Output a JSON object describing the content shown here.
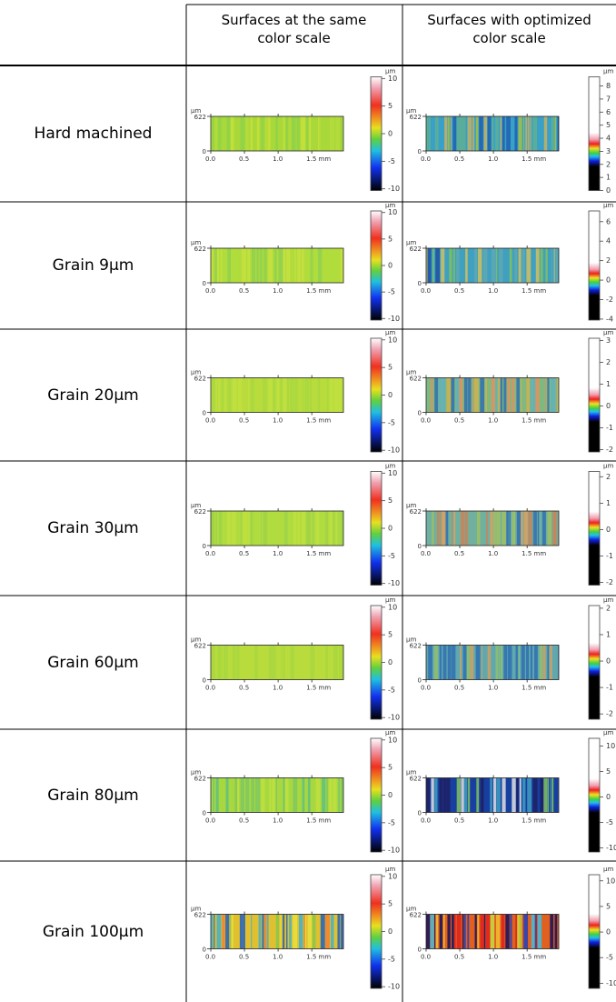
{
  "table": {
    "headers": [
      "Surfaces at the same color scale",
      "Surfaces with optimized color scale"
    ],
    "plot_axes": {
      "unit": "µm",
      "ylim": [
        0,
        622
      ],
      "yticks": [
        622,
        0
      ],
      "xlim": [
        0,
        1.97
      ],
      "xticks": [
        {
          "value": 0,
          "label": "0.0"
        },
        {
          "value": 0.5,
          "label": "0.5"
        },
        {
          "value": 1,
          "label": "1.0"
        },
        {
          "value": 1.5,
          "label": "1.5 mm"
        }
      ]
    },
    "same_scale": {
      "ticks": [
        10,
        5,
        0,
        -5,
        -10
      ],
      "lim": [
        -10.3,
        10.3
      ]
    },
    "rows": [
      {
        "label": "Hard machined",
        "same_colors": [
          "#a8d83a",
          "#c8e03a",
          "#8fd24a",
          "#b5dc3c"
        ],
        "optimized": {
          "ticks": [
            8,
            7,
            6,
            5,
            4,
            3,
            2,
            1,
            0
          ],
          "lim": [
            0,
            8.7
          ],
          "colors": [
            "#3aa0c8",
            "#a8c040",
            "#2060b0",
            "#c8b060",
            "#60b090"
          ]
        }
      },
      {
        "label": "Grain 9µm",
        "same_colors": [
          "#b0dc3c",
          "#90d050",
          "#c8e040"
        ],
        "optimized": {
          "ticks": [
            6,
            4,
            2,
            0,
            -2,
            -4
          ],
          "lim": [
            -4.1,
            7.1
          ],
          "colors": [
            "#40a0c0",
            "#80c060",
            "#2050a0",
            "#d0c060",
            "#60a8b0"
          ]
        }
      },
      {
        "label": "Grain 20µm",
        "same_colors": [
          "#b8dc3c",
          "#a8d840",
          "#c0e040"
        ],
        "optimized": {
          "ticks": [
            3,
            2,
            1,
            0,
            -1,
            -2
          ],
          "lim": [
            -2.1,
            3.1
          ],
          "colors": [
            "#80b880",
            "#d0b050",
            "#3070b0",
            "#60b0c0",
            "#e09060"
          ]
        }
      },
      {
        "label": "Grain 30µm",
        "same_colors": [
          "#b0dc40",
          "#c0e040",
          "#a0d448"
        ],
        "optimized": {
          "ticks": [
            2,
            1,
            0,
            -1,
            -2
          ],
          "lim": [
            -2.1,
            2.2
          ],
          "colors": [
            "#70b0a0",
            "#d08050",
            "#3070b0",
            "#a0c060",
            "#e0a060"
          ]
        }
      },
      {
        "label": "Grain 60µm",
        "same_colors": [
          "#b8dc3c",
          "#a8d640"
        ],
        "optimized": {
          "ticks": [
            2,
            1,
            0,
            -1,
            -2
          ],
          "lim": [
            -2.2,
            2.1
          ],
          "colors": [
            "#60a8b0",
            "#d0a060",
            "#3070b0",
            "#90c070"
          ]
        }
      },
      {
        "label": "Grain 80µm",
        "same_colors": [
          "#a8d840",
          "#80c860",
          "#c0e040",
          "#60c080"
        ],
        "optimized": {
          "ticks": [
            10,
            5,
            0,
            -5,
            -10
          ],
          "lim": [
            -10.8,
            11.5
          ],
          "colors": [
            "#1840a0",
            "#40a0c0",
            "#80c060",
            "#e0e0e0",
            "#202060"
          ]
        }
      },
      {
        "label": "Grain 100µm",
        "same_colors": [
          "#e0c030",
          "#40b0d0",
          "#f08030",
          "#80c850",
          "#2060c0",
          "#e8e040"
        ],
        "optimized": {
          "ticks": [
            10,
            5,
            0,
            -5,
            -10
          ],
          "lim": [
            -11,
            11.2
          ],
          "colors": [
            "#e06020",
            "#101060",
            "#2040c0",
            "#40c0e0",
            "#f0c030",
            "#e02020",
            "#c0e040"
          ]
        }
      }
    ]
  }
}
